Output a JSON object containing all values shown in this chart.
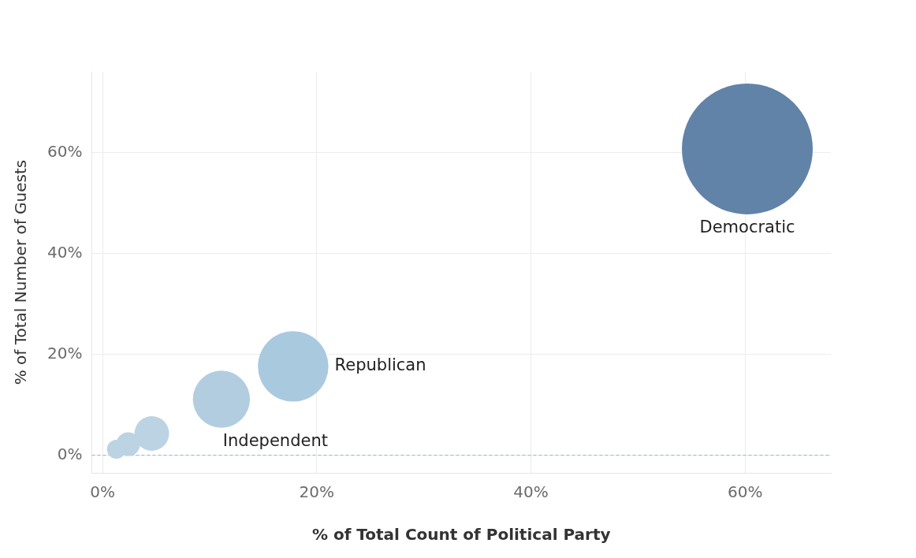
{
  "chart_data": {
    "type": "bubble",
    "xlabel": "% of Total Count of Political Party",
    "ylabel": "% of Total Number of Guests",
    "series": [
      {
        "name": "Democratic",
        "color": "#6283a8",
        "x": [
          60.2
        ],
        "values": [
          60.7
        ],
        "sizes": [
          1
        ]
      },
      {
        "name": "Republican",
        "color": "#a9c9df",
        "x": [
          17.8
        ],
        "values": [
          17.6
        ],
        "sizes": [
          0.29
        ]
      },
      {
        "name": "Independent",
        "color": "#b3cde0",
        "x": [
          11.1
        ],
        "values": [
          11.1
        ],
        "sizes": [
          0.19
        ]
      },
      {
        "color": "#bcd3e4",
        "x": [
          4.6,
          2.4,
          1.3
        ],
        "values": [
          4.3,
          2.2,
          1.2
        ],
        "sizes": [
          0.07,
          0.033,
          0.021
        ]
      }
    ],
    "xlim": [
      -1,
      68
    ],
    "xticks": [
      {
        "value": 0,
        "label": "0%"
      },
      {
        "value": 20,
        "label": "20%"
      },
      {
        "value": 40,
        "label": "40%"
      },
      {
        "value": 60,
        "label": "60%"
      }
    ],
    "ylim": [
      -3.5,
      76
    ],
    "yticks": [
      {
        "value": 0,
        "label": "0%"
      },
      {
        "value": 20,
        "label": "20%"
      },
      {
        "value": 40,
        "label": "40%"
      },
      {
        "value": 60,
        "label": "60%"
      }
    ],
    "ref_lines": [
      {
        "axis": "y",
        "value": 0,
        "color": "#9fc0d8",
        "line_style": "dashed"
      }
    ],
    "grid": true,
    "legend": false,
    "marker": "circle"
  }
}
